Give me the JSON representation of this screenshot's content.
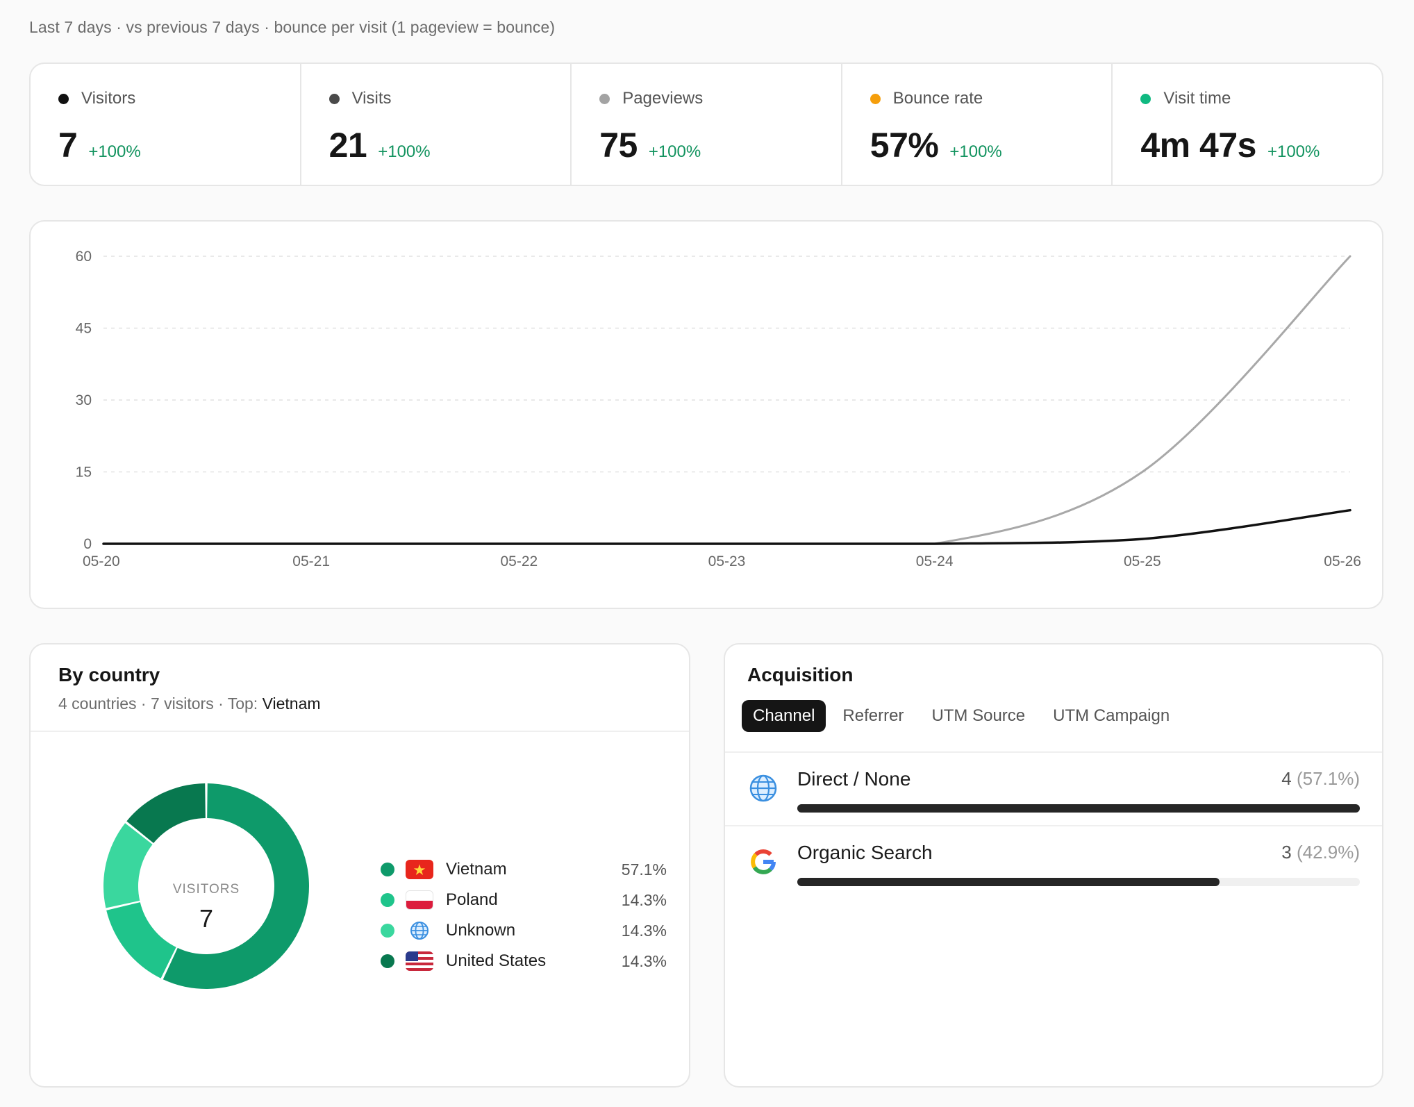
{
  "header": {
    "subtitle": "Last 7 days · vs previous 7 days · bounce per visit (1 pageview = bounce)"
  },
  "kpis": [
    {
      "label": "Visitors",
      "value": "7",
      "change": "+100%",
      "dot_color": "#111111"
    },
    {
      "label": "Visits",
      "value": "21",
      "change": "+100%",
      "dot_color": "#4a4a4a"
    },
    {
      "label": "Pageviews",
      "value": "75",
      "change": "+100%",
      "dot_color": "#a3a3a3"
    },
    {
      "label": "Bounce rate",
      "value": "57%",
      "change": "+100%",
      "dot_color": "#f59e0b"
    },
    {
      "label": "Visit time",
      "value": "4m 47s",
      "change": "+100%",
      "dot_color": "#10b981"
    }
  ],
  "chart_data": {
    "type": "line",
    "x": [
      "05-20",
      "05-21",
      "05-22",
      "05-23",
      "05-24",
      "05-25",
      "05-26"
    ],
    "series": [
      {
        "values": [
          0,
          0,
          0,
          0,
          0,
          15,
          60
        ],
        "color": "#a8a8a8"
      },
      {
        "values": [
          0,
          0,
          0,
          0,
          0,
          1,
          7
        ],
        "color": "#111111"
      }
    ],
    "yticks": [
      0,
      15,
      30,
      45,
      60
    ],
    "ylim": [
      0,
      60
    ],
    "grid": true
  },
  "country": {
    "title": "By country",
    "subtitle_prefix": "4 countries · 7 visitors · Top:",
    "top": "Vietnam",
    "donut_label": "VISITORS",
    "donut_value": "7",
    "items": [
      {
        "name": "Vietnam",
        "pct": "57.1%",
        "share": 57.1,
        "color": "#0e9a6a",
        "flag": "vn"
      },
      {
        "name": "Poland",
        "pct": "14.3%",
        "share": 14.3,
        "color": "#1fc48b",
        "flag": "pl"
      },
      {
        "name": "Unknown",
        "pct": "14.3%",
        "share": 14.3,
        "color": "#3ad79e",
        "flag": "globe"
      },
      {
        "name": "United States",
        "pct": "14.3%",
        "share": 14.3,
        "color": "#08784f",
        "flag": "us"
      }
    ]
  },
  "acquisition": {
    "title": "Acquisition",
    "tabs": [
      "Channel",
      "Referrer",
      "UTM Source",
      "UTM Campaign"
    ],
    "active_tab": 0,
    "rows": [
      {
        "name": "Direct / None",
        "count": "4",
        "pct": "(57.1%)",
        "fill": 1.0,
        "icon": "globe-icon"
      },
      {
        "name": "Organic Search",
        "count": "3",
        "pct": "(42.9%)",
        "fill": 0.75,
        "icon": "google-icon"
      }
    ]
  }
}
